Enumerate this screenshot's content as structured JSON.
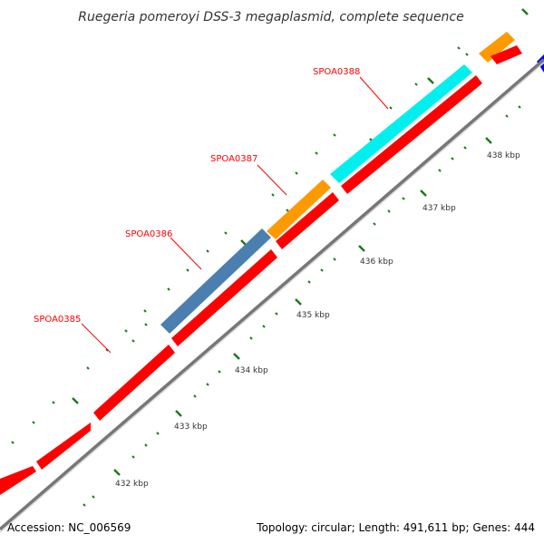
{
  "title": "Ruegeria pomeroyi DSS-3 megaplasmid, complete sequence",
  "footer": {
    "accession": "Accession: NC_006569",
    "summary": "Topology: circular; Length: 491,611 bp; Genes: 444"
  },
  "colors": {
    "backbone_dark": "#777777",
    "backbone_light": "#d9d9d9",
    "reverse_strand": "#ff0000",
    "tick": "#1a7a1a",
    "label": "#ff0000",
    "gene_orange": "#ff9900",
    "gene_steelblue": "#4a7fb0",
    "gene_cyan": "#00f0f0",
    "gene_blue": "#0000ff"
  },
  "ticks": [
    {
      "label": "432 kbp"
    },
    {
      "label": "433 kbp"
    },
    {
      "label": "434 kbp"
    },
    {
      "label": "435 kbp"
    },
    {
      "label": "436 kbp"
    },
    {
      "label": "437 kbp"
    },
    {
      "label": "438 kbp"
    }
  ],
  "gene_labels": [
    {
      "label": "SPOA0385"
    },
    {
      "label": "SPOA0386"
    },
    {
      "label": "SPOA0387"
    },
    {
      "label": "SPOA0388"
    }
  ]
}
